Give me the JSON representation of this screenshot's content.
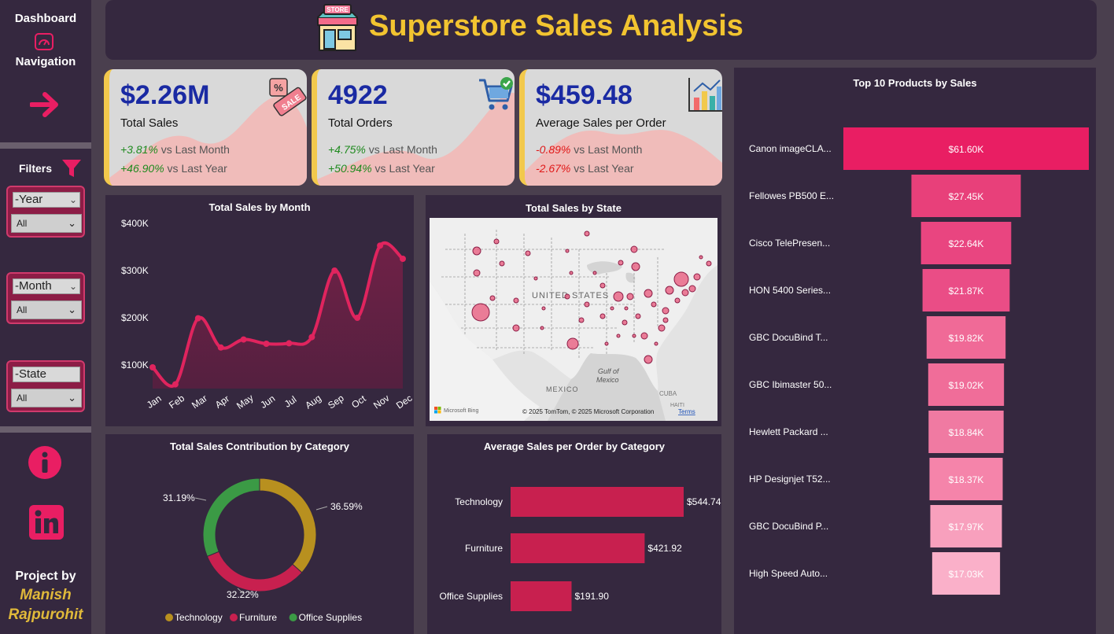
{
  "sidebar": {
    "title_line1": "Dashboard",
    "title_line2": "Navigation",
    "filters_label": "Filters",
    "filters": [
      {
        "label": "-Year",
        "value": "All"
      },
      {
        "label": "-Month",
        "value": "All"
      },
      {
        "label": "-State",
        "value": "All"
      }
    ],
    "project_by": "Project by",
    "author_line1": "Manish",
    "author_line2": "Rajpurohit"
  },
  "header": {
    "title": "Superstore Sales Analysis",
    "store_sign": "STORE"
  },
  "kpis": [
    {
      "value": "$2.26M",
      "label": "Total Sales",
      "mom_pct": "+3.81%",
      "mom_text": " vs Last Month",
      "yoy_pct": "+46.90%",
      "yoy_text": " vs Last Year",
      "tag": "SALE"
    },
    {
      "value": "4922",
      "label": "Total Orders",
      "mom_pct": "+4.75%",
      "mom_text": " vs Last Month",
      "yoy_pct": "+50.94%",
      "yoy_text": " vs Last Year"
    },
    {
      "value": "$459.48",
      "label": "Average Sales per Order",
      "mom_pct": "-0.89%",
      "mom_text": " vs Last Month",
      "yoy_pct": "-2.67%",
      "yoy_text": " vs Last Year"
    }
  ],
  "colors": {
    "accent": "#e91e63",
    "title_yellow": "#f2c430",
    "kpi_blue": "#1a2aa3",
    "positive": "#1f8a1f",
    "negative": "#e01818",
    "technology": "#b8901f",
    "furniture": "#c8204f",
    "office_supplies": "#3b9a45"
  },
  "icons": [
    "dashboard-icon",
    "arrow-right-icon",
    "filter-icon",
    "info-icon",
    "linkedin-icon",
    "store-icon",
    "sale-tag-icon",
    "cart-icon",
    "bar-chart-icon"
  ],
  "map": {
    "title": "Total Sales by State",
    "country_label": "UNITED STATES",
    "gulf_label": "Gulf of Mexico",
    "mexico_label": "MEXICO",
    "cuba_label": "CUBA",
    "haiti_label": "HAITI",
    "bing_label": "Microsoft Bing",
    "attribution": "© 2025 TomTom, © 2025 Microsoft Corporation",
    "terms": "Terms"
  },
  "chart_data": [
    {
      "type": "area",
      "title": "Total Sales by Month",
      "categories": [
        "Jan",
        "Feb",
        "Mar",
        "Apr",
        "May",
        "Jun",
        "Jul",
        "Aug",
        "Sep",
        "Oct",
        "Nov",
        "Dec"
      ],
      "values": [
        95000,
        59000,
        199000,
        137000,
        154000,
        145000,
        146000,
        159000,
        300000,
        200000,
        353000,
        325000
      ],
      "yticks": [
        "$100K",
        "$200K",
        "$300K",
        "$400K"
      ],
      "ylim": [
        50000,
        400000
      ]
    },
    {
      "type": "pie",
      "title": "Total Sales Contribution by Category",
      "categories": [
        "Technology",
        "Furniture",
        "Office Supplies"
      ],
      "values": [
        36.59,
        32.22,
        31.19
      ],
      "labels": [
        "36.59%",
        "32.22%",
        "31.19%"
      ],
      "legend": "bottom"
    },
    {
      "type": "bar",
      "title": "Average Sales per Order by Category",
      "categories": [
        "Technology",
        "Furniture",
        "Office Supplies"
      ],
      "values": [
        544.74,
        421.92,
        191.9
      ],
      "labels": [
        "$544.74",
        "$421.92",
        "$191.90"
      ]
    },
    {
      "type": "bar",
      "title": "Top 10 Products by Sales",
      "categories": [
        "Canon imageCLA...",
        "Fellowes PB500 E...",
        "Cisco TelePresen...",
        "HON 5400 Series...",
        "GBC DocuBind T...",
        "GBC Ibimaster 50...",
        "Hewlett Packard ...",
        "HP Designjet T52...",
        "GBC DocuBind P...",
        "High Speed Auto..."
      ],
      "values": [
        61.6,
        27.45,
        22.64,
        21.87,
        19.82,
        19.02,
        18.84,
        18.37,
        17.97,
        17.03
      ],
      "labels": [
        "$61.60K",
        "$27.45K",
        "$22.64K",
        "$21.87K",
        "$19.82K",
        "$19.02K",
        "$18.84K",
        "$18.37K",
        "$17.97K",
        "$17.03K"
      ]
    }
  ]
}
